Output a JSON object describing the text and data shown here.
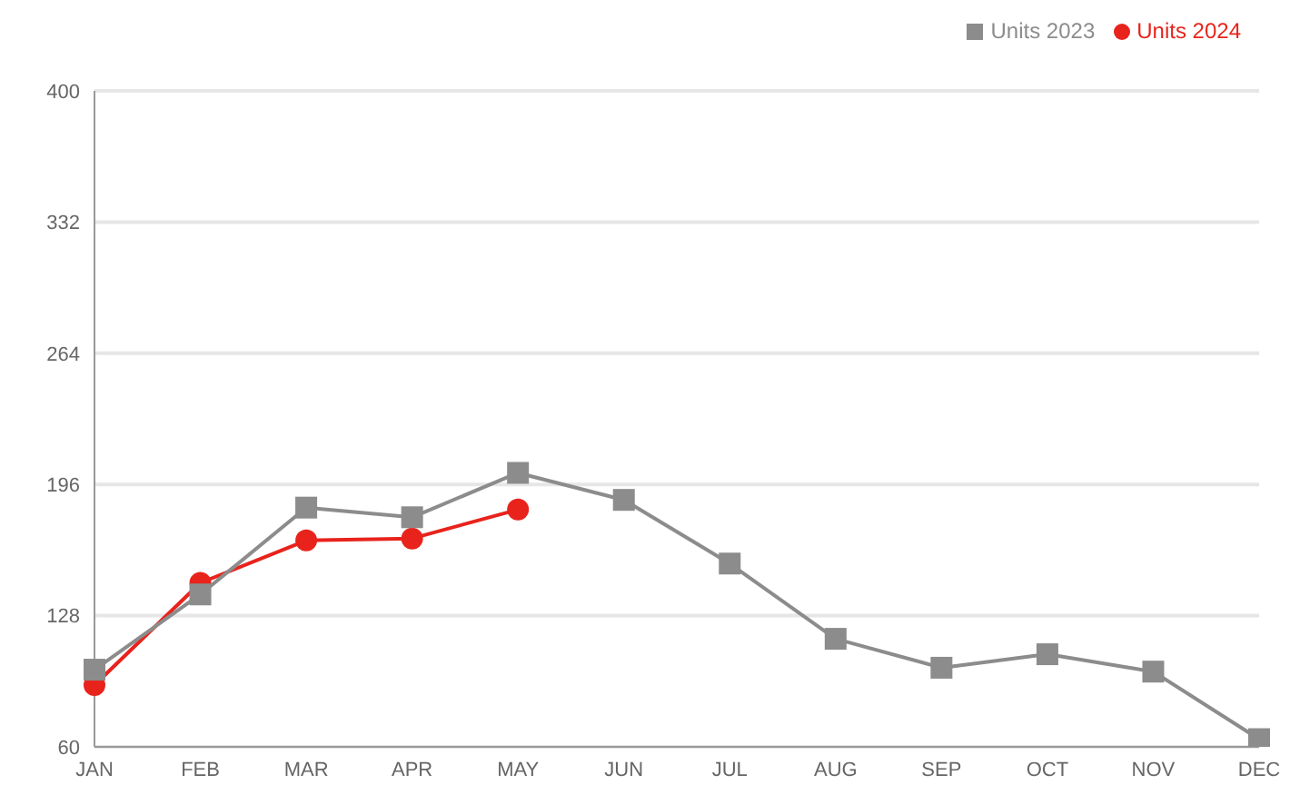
{
  "chart_data": {
    "type": "line",
    "categories": [
      "JAN",
      "FEB",
      "MAR",
      "APR",
      "MAY",
      "JUN",
      "JUL",
      "AUG",
      "SEP",
      "OCT",
      "NOV",
      "DEC"
    ],
    "series": [
      {
        "name": "Units 2024",
        "color": "#e8231c",
        "marker": "circle",
        "values": [
          92,
          145,
          167,
          168,
          183,
          null,
          null,
          null,
          null,
          null,
          null,
          null
        ]
      },
      {
        "name": "Units 2023",
        "color": "#8c8c8c",
        "marker": "square",
        "values": [
          100,
          139,
          184,
          179,
          202,
          188,
          155,
          116,
          101,
          108,
          99,
          64
        ]
      }
    ],
    "ylim": [
      60,
      400
    ],
    "yticks": [
      60,
      128,
      196,
      264,
      332,
      400
    ],
    "grid": "y",
    "legend": "top right"
  }
}
